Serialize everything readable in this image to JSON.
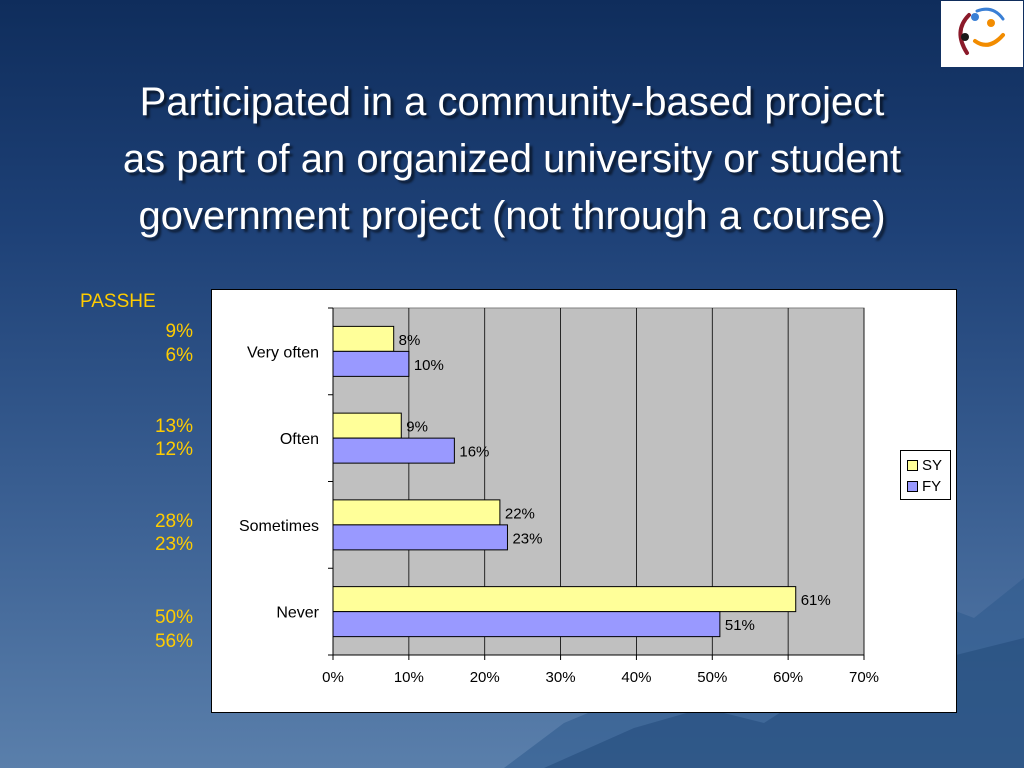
{
  "slide": {
    "title_lines": [
      "Participated in a community-based project",
      "as part of an organized university or student",
      "government project (not through a course)"
    ]
  },
  "passhe": {
    "header": "PASSHE",
    "values": [
      "9%",
      "6%",
      "13%",
      "12%",
      "28%",
      "23%",
      "50%",
      "56%"
    ]
  },
  "chart_data": {
    "type": "bar",
    "orientation": "horizontal",
    "categories": [
      "Very often",
      "Often",
      "Sometimes",
      "Never"
    ],
    "series": [
      {
        "name": "SY",
        "values": [
          8,
          9,
          22,
          61
        ],
        "labels": [
          "8%",
          "9%",
          "22%",
          "61%"
        ],
        "color": "#ffff99"
      },
      {
        "name": "FY",
        "values": [
          10,
          16,
          23,
          51
        ],
        "labels": [
          "10%",
          "16%",
          "23%",
          "51%"
        ],
        "color": "#9999ff"
      }
    ],
    "x_ticks": [
      "0%",
      "10%",
      "20%",
      "30%",
      "40%",
      "50%",
      "60%",
      "70%"
    ],
    "xlim": [
      0,
      70
    ],
    "plot_background": "#c0c0c0",
    "grid": true,
    "legend": "right"
  }
}
